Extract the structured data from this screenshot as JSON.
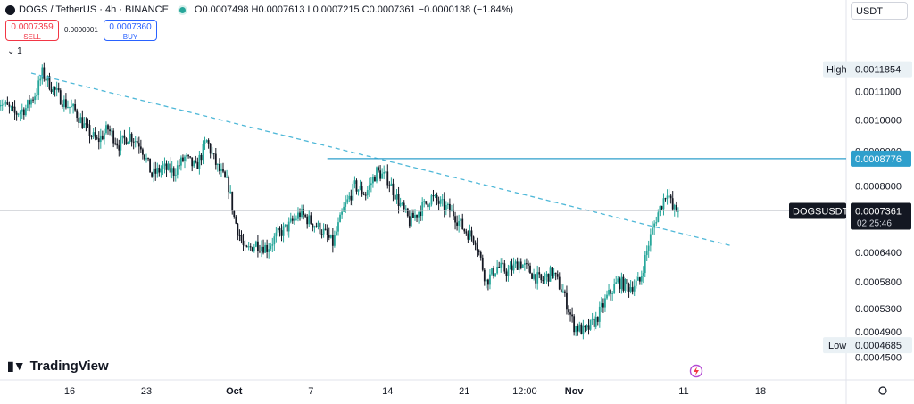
{
  "header": {
    "symbol": "DOGS / TetherUS · 4h · BINANCE",
    "ohlc": "O0.0007498 H0.0007613 L0.0007215 C0.0007361 −0.0000138 (−1.84%)"
  },
  "quote": {
    "sell_price": "0.0007359",
    "sell_label": "SELL",
    "spread": "0.0000001",
    "buy_price": "0.0007360",
    "buy_label": "BUY"
  },
  "indicator_toggle": "1",
  "currency": "USDT",
  "brand": "TradingView",
  "colors": {
    "up": "#26a69a",
    "down": "#131722",
    "trendline": "#4fb8d8",
    "level": "#2e9fcc"
  },
  "chart_data": {
    "type": "candlestick",
    "symbol": "DOGSUSDT",
    "interval": "4h",
    "y_scale": "log",
    "ylim": [
      0.00044,
      0.00125
    ],
    "y_ticks": [
      "0.0011000",
      "0.0010000",
      "0.0009000",
      "0.0008000",
      "0.0006400",
      "0.0005800",
      "0.0005300",
      "0.0004900",
      "0.0004500"
    ],
    "x_ticks": [
      {
        "label": "16",
        "t": 0
      },
      {
        "label": "23",
        "t": 7
      },
      {
        "label": "Oct",
        "t": 15
      },
      {
        "label": "7",
        "t": 22
      },
      {
        "label": "14",
        "t": 29
      },
      {
        "label": "21",
        "t": 36
      },
      {
        "label": "12:00",
        "t": 41.5
      },
      {
        "label": "Nov",
        "t": 46
      },
      {
        "label": "11",
        "t": 56
      },
      {
        "label": "18",
        "t": 63
      }
    ],
    "x_range_days": [
      -6.5,
      73.3
    ],
    "markers": {
      "high_label": "High",
      "high": "0.0011854",
      "high_value": 0.0011854,
      "low_label": "Low",
      "low": "0.0004685",
      "low_value": 0.0004685,
      "last_symbol": "DOGSUSDT",
      "last": "0.0007361",
      "last_value": 0.0007361,
      "countdown": "02:25:46",
      "level": "0.0008776",
      "level_value": 0.0008776
    },
    "horizontal_line": {
      "value": 0.0008776,
      "t_start": 23.5
    },
    "trendline": {
      "t1": -3.5,
      "p1": 0.00117,
      "t2": 60.3,
      "p2": 0.000655
    },
    "series": [
      {
        "t": -6.5,
        "c": 0.00107
      },
      {
        "t": -5,
        "c": 0.00102
      },
      {
        "t": -4,
        "c": 0.00104
      },
      {
        "t": -3,
        "c": 0.0011
      },
      {
        "t": -2.5,
        "c": 0.00117
      },
      {
        "t": -1.5,
        "c": 0.00111
      },
      {
        "t": -0.5,
        "c": 0.00106
      },
      {
        "t": 0.5,
        "c": 0.00103
      },
      {
        "t": 1.5,
        "c": 0.00097
      },
      {
        "t": 2.5,
        "c": 0.00093
      },
      {
        "t": 3.5,
        "c": 0.00097
      },
      {
        "t": 4.5,
        "c": 0.00092
      },
      {
        "t": 5.5,
        "c": 0.00095
      },
      {
        "t": 6.5,
        "c": 0.00092
      },
      {
        "t": 7.5,
        "c": 0.00083
      },
      {
        "t": 8.5,
        "c": 0.00085
      },
      {
        "t": 9.5,
        "c": 0.00084
      },
      {
        "t": 10.5,
        "c": 0.00088
      },
      {
        "t": 11.5,
        "c": 0.00085
      },
      {
        "t": 12.5,
        "c": 0.00093
      },
      {
        "t": 13.5,
        "c": 0.00085
      },
      {
        "t": 14.5,
        "c": 0.0008
      },
      {
        "t": 15,
        "c": 0.00072
      },
      {
        "t": 16,
        "c": 0.00064
      },
      {
        "t": 17,
        "c": 0.00066
      },
      {
        "t": 18,
        "c": 0.00065
      },
      {
        "t": 19,
        "c": 0.00068
      },
      {
        "t": 20,
        "c": 0.0007
      },
      {
        "t": 21,
        "c": 0.00073
      },
      {
        "t": 22,
        "c": 0.00071
      },
      {
        "t": 23,
        "c": 0.00069
      },
      {
        "t": 24,
        "c": 0.00066
      },
      {
        "t": 25,
        "c": 0.00074
      },
      {
        "t": 26,
        "c": 0.0008
      },
      {
        "t": 27,
        "c": 0.00078
      },
      {
        "t": 28,
        "c": 0.00084
      },
      {
        "t": 29,
        "c": 0.00082
      },
      {
        "t": 30,
        "c": 0.00076
      },
      {
        "t": 31,
        "c": 0.00071
      },
      {
        "t": 32,
        "c": 0.00074
      },
      {
        "t": 33,
        "c": 0.00077
      },
      {
        "t": 34,
        "c": 0.00075
      },
      {
        "t": 35,
        "c": 0.00073
      },
      {
        "t": 36,
        "c": 0.00069
      },
      {
        "t": 37,
        "c": 0.00067
      },
      {
        "t": 38,
        "c": 0.00058
      },
      {
        "t": 39,
        "c": 0.00061
      },
      {
        "t": 40,
        "c": 0.0006
      },
      {
        "t": 41,
        "c": 0.00062
      },
      {
        "t": 42,
        "c": 0.0006
      },
      {
        "t": 43,
        "c": 0.00058
      },
      {
        "t": 44,
        "c": 0.0006
      },
      {
        "t": 45,
        "c": 0.00056
      },
      {
        "t": 46,
        "c": 0.0005
      },
      {
        "t": 47,
        "c": 0.00049
      },
      {
        "t": 48,
        "c": 0.00051
      },
      {
        "t": 49,
        "c": 0.00055
      },
      {
        "t": 50,
        "c": 0.00058
      },
      {
        "t": 51,
        "c": 0.00057
      },
      {
        "t": 52,
        "c": 0.00058
      },
      {
        "t": 52.8,
        "c": 0.00066
      },
      {
        "t": 53.5,
        "c": 0.00072
      },
      {
        "t": 54.5,
        "c": 0.00079
      },
      {
        "t": 55,
        "c": 0.00074
      },
      {
        "t": 55.5,
        "c": 0.0007361
      }
    ]
  }
}
